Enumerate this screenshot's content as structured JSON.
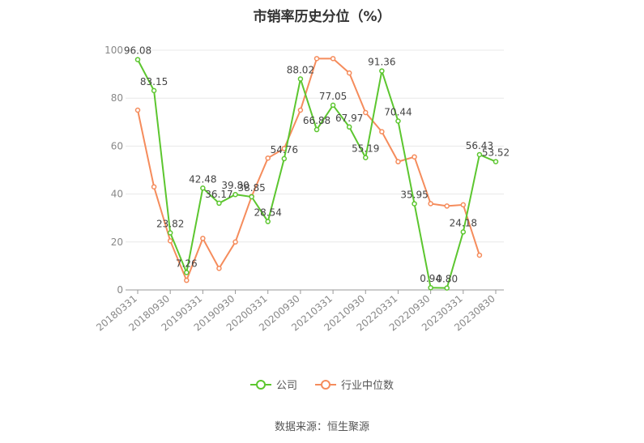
{
  "title": "市销率历史分位（%）",
  "source": "数据来源：恒生聚源",
  "colors": {
    "company": "#5cc62f",
    "industry": "#f58c5c",
    "grid": "#e8e8e8",
    "axis": "#999999"
  },
  "chart_data": {
    "type": "line",
    "title": "市销率历史分位（%）",
    "ylim": [
      0,
      100
    ],
    "yticks": [
      0,
      20,
      40,
      60,
      80,
      100
    ],
    "grid": true,
    "legend_position": "bottom",
    "x_tick_labels": [
      "20180331",
      "20180930",
      "20190331",
      "20190930",
      "20200331",
      "20200930",
      "20210331",
      "20210930",
      "20220331",
      "20220930",
      "20230331",
      "20230830"
    ],
    "x_count": 23,
    "series": [
      {
        "name": "公司",
        "color": "#5cc62f",
        "values": [
          96.08,
          83.15,
          23.82,
          7.26,
          42.48,
          36.17,
          39.8,
          38.85,
          28.54,
          54.76,
          88.02,
          66.88,
          77.05,
          67.97,
          55.19,
          91.36,
          70.44,
          35.95,
          0.94,
          0.8,
          24.18,
          56.43,
          53.52
        ],
        "labels": [
          "96.08",
          "83.15",
          "23.82",
          "7.26",
          "42.48",
          "36.17",
          "39.80",
          "38.85",
          "28.54",
          "54.76",
          "88.02",
          "66.88",
          "77.05",
          "67.97",
          "55.19",
          "91.36",
          "70.44",
          "35.95",
          "0.94",
          "0.80",
          "24.18",
          "56.43",
          "53.52"
        ]
      },
      {
        "name": "行业中位数",
        "color": "#f58c5c",
        "values": [
          75,
          43,
          20.5,
          4,
          21.5,
          9,
          20,
          39,
          55,
          59,
          75,
          96.5,
          96.5,
          90.5,
          74,
          66,
          53.5,
          55.5,
          36,
          35,
          35.5,
          14.5
        ]
      }
    ]
  }
}
